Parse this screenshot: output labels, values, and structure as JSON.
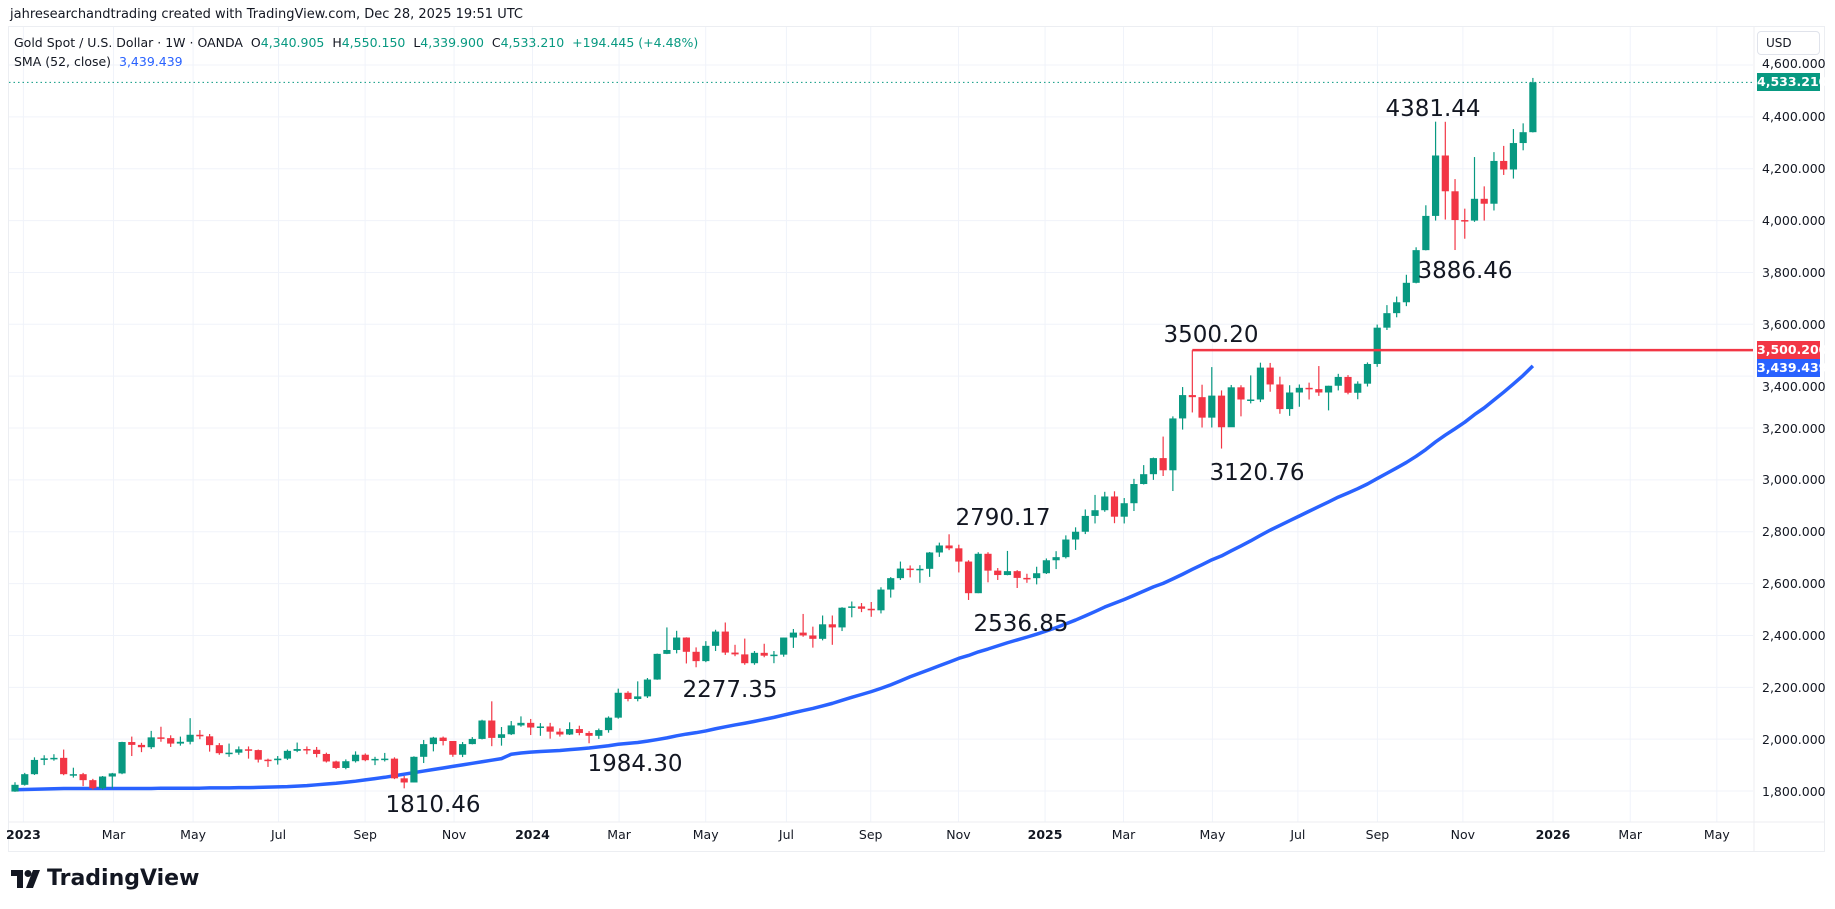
{
  "credit": "jahresearchandtrading created with TradingView.com, Dec 28, 2025 19:51 UTC",
  "legend": {
    "symbol": "Gold Spot / U.S. Dollar · 1W · OANDA",
    "o_label": "O",
    "o": "4,340.905",
    "h_label": "H",
    "h": "4,550.150",
    "l_label": "L",
    "l": "4,339.900",
    "c_label": "C",
    "c": "4,533.210",
    "change": "+194.445 (+4.48%)",
    "sma_label": "SMA (52, close)",
    "sma_value": "3,439.439"
  },
  "currency": "USD",
  "price_tags": {
    "last": "4,533.210",
    "resistance": "3,500.200",
    "sma": "3,439.439"
  },
  "colors": {
    "up": "#089981",
    "down": "#f23645",
    "sma": "#2962ff",
    "resistance": "#f23645"
  },
  "brand": "TradingView",
  "annotations": [
    "4381.44",
    "3886.46",
    "3500.20",
    "3120.76",
    "2790.17",
    "2536.85",
    "2277.35",
    "1984.30",
    "1810.46"
  ],
  "chart_data": {
    "type": "candlestick",
    "interval": "1W",
    "ylim": [
      1750,
      4700
    ],
    "scale": "linear",
    "grid": true,
    "y_ticks": [
      "4,600.000",
      "4,400.000",
      "4,200.000",
      "4,000.000",
      "3,800.000",
      "3,600.000",
      "3,400.000",
      "3,200.000",
      "3,000.000",
      "2,800.000",
      "2,600.000",
      "2,400.000",
      "2,200.000",
      "2,000.000",
      "1,800.000"
    ],
    "x_ticks": [
      "2023",
      "Mar",
      "May",
      "Jul",
      "Sep",
      "Nov",
      "2024",
      "Mar",
      "May",
      "Jul",
      "Sep",
      "Nov",
      "2025",
      "Mar",
      "May",
      "Jul",
      "Sep",
      "Nov",
      "2026",
      "Mar",
      "May"
    ],
    "resistance_level": 3500.2,
    "sma_period": 52,
    "sma_2023_values": [
      1805,
      1806,
      1807,
      1808,
      1809,
      1810,
      1810,
      1810,
      1810,
      1810,
      1810,
      1810,
      1810,
      1810,
      1810,
      1811,
      1811,
      1811,
      1811,
      1811,
      1812,
      1812,
      1812,
      1813,
      1813,
      1814,
      1815,
      1816,
      1817,
      1819,
      1821,
      1824,
      1827,
      1830,
      1834,
      1838,
      1843,
      1848,
      1853,
      1859,
      1865,
      1871,
      1877,
      1883,
      1889,
      1895,
      1901,
      1907,
      1913,
      1919,
      1925
    ],
    "candles_ohlc": [
      [
        1798,
        1834,
        1797,
        1824
      ],
      [
        1824,
        1870,
        1821,
        1865
      ],
      [
        1865,
        1930,
        1862,
        1920
      ],
      [
        1920,
        1938,
        1900,
        1926
      ],
      [
        1926,
        1942,
        1917,
        1928
      ],
      [
        1928,
        1960,
        1861,
        1865
      ],
      [
        1865,
        1890,
        1852,
        1865
      ],
      [
        1865,
        1870,
        1819,
        1842
      ],
      [
        1842,
        1847,
        1805,
        1811
      ],
      [
        1811,
        1858,
        1805,
        1856
      ],
      [
        1856,
        1870,
        1810,
        1868
      ],
      [
        1868,
        1990,
        1865,
        1989
      ],
      [
        1989,
        2010,
        1935,
        1978
      ],
      [
        1978,
        1986,
        1950,
        1969
      ],
      [
        1969,
        2032,
        1962,
        2007
      ],
      [
        2007,
        2048,
        1990,
        2004
      ],
      [
        2004,
        2015,
        1970,
        1983
      ],
      [
        1983,
        2010,
        1975,
        1990
      ],
      [
        1990,
        2081,
        1980,
        2017
      ],
      [
        2017,
        2035,
        2000,
        2011
      ],
      [
        2011,
        2020,
        1952,
        1977
      ],
      [
        1977,
        1985,
        1940,
        1946
      ],
      [
        1946,
        1983,
        1932,
        1948
      ],
      [
        1948,
        1972,
        1940,
        1961
      ],
      [
        1961,
        1972,
        1925,
        1958
      ],
      [
        1958,
        1960,
        1910,
        1921
      ],
      [
        1921,
        1925,
        1893,
        1919
      ],
      [
        1919,
        1935,
        1902,
        1925
      ],
      [
        1925,
        1960,
        1920,
        1955
      ],
      [
        1955,
        1987,
        1950,
        1962
      ],
      [
        1962,
        1972,
        1942,
        1959
      ],
      [
        1959,
        1970,
        1930,
        1943
      ],
      [
        1943,
        1948,
        1910,
        1914
      ],
      [
        1914,
        1917,
        1885,
        1889
      ],
      [
        1889,
        1922,
        1884,
        1915
      ],
      [
        1915,
        1953,
        1910,
        1940
      ],
      [
        1940,
        1945,
        1915,
        1919
      ],
      [
        1919,
        1932,
        1900,
        1924
      ],
      [
        1924,
        1947,
        1914,
        1925
      ],
      [
        1925,
        1930,
        1846,
        1849
      ],
      [
        1849,
        1858,
        1810.46,
        1833
      ],
      [
        1833,
        1934,
        1833,
        1932
      ],
      [
        1932,
        1997,
        1908,
        1981
      ],
      [
        1981,
        2009,
        1953,
        2006
      ],
      [
        2006,
        2010,
        1976,
        1993
      ],
      [
        1993,
        1993,
        1932,
        1940
      ],
      [
        1940,
        1989,
        1931,
        1981
      ],
      [
        1981,
        2008,
        1980,
        2001
      ],
      [
        2001,
        2075,
        1999,
        2072
      ],
      [
        2072,
        2146,
        1973,
        2005
      ],
      [
        2005,
        2047,
        1975,
        2019
      ],
      [
        2019,
        2070,
        2016,
        2053
      ],
      [
        2053,
        2088,
        2048,
        2063
      ],
      [
        2063,
        2078,
        2016,
        2045
      ],
      [
        2045,
        2062,
        2013,
        2049
      ],
      [
        2049,
        2063,
        2002,
        2029
      ],
      [
        2029,
        2042,
        2010,
        2018
      ],
      [
        2018,
        2065,
        2016,
        2039
      ],
      [
        2039,
        2052,
        2015,
        2024
      ],
      [
        2024,
        2031,
        1984.3,
        2013
      ],
      [
        2013,
        2041,
        2001,
        2035
      ],
      [
        2035,
        2088,
        2025,
        2083
      ],
      [
        2083,
        2195,
        2079,
        2179
      ],
      [
        2179,
        2185,
        2146,
        2155
      ],
      [
        2155,
        2223,
        2146,
        2165
      ],
      [
        2165,
        2236,
        2159,
        2230
      ],
      [
        2230,
        2330,
        2229,
        2329
      ],
      [
        2329,
        2431,
        2328,
        2344
      ],
      [
        2344,
        2418,
        2331,
        2392
      ],
      [
        2392,
        2393,
        2292,
        2337
      ],
      [
        2337,
        2354,
        2277.35,
        2301
      ],
      [
        2301,
        2378,
        2297,
        2360
      ],
      [
        2360,
        2422,
        2340,
        2415
      ],
      [
        2415,
        2450,
        2325,
        2334
      ],
      [
        2334,
        2364,
        2320,
        2327
      ],
      [
        2327,
        2388,
        2287,
        2293
      ],
      [
        2293,
        2340,
        2287,
        2333
      ],
      [
        2333,
        2368,
        2316,
        2322
      ],
      [
        2322,
        2340,
        2293,
        2326
      ],
      [
        2326,
        2392,
        2318,
        2392
      ],
      [
        2392,
        2425,
        2352,
        2411
      ],
      [
        2411,
        2483,
        2395,
        2400
      ],
      [
        2400,
        2434,
        2353,
        2387
      ],
      [
        2387,
        2477,
        2381,
        2443
      ],
      [
        2443,
        2477,
        2364,
        2431
      ],
      [
        2431,
        2509,
        2417,
        2507
      ],
      [
        2507,
        2531,
        2470,
        2512
      ],
      [
        2512,
        2525,
        2490,
        2503
      ],
      [
        2503,
        2529,
        2472,
        2497
      ],
      [
        2497,
        2586,
        2485,
        2577
      ],
      [
        2577,
        2625,
        2546,
        2621
      ],
      [
        2621,
        2685,
        2614,
        2658
      ],
      [
        2658,
        2670,
        2624,
        2653
      ],
      [
        2653,
        2671,
        2603,
        2657
      ],
      [
        2657,
        2722,
        2626,
        2720
      ],
      [
        2720,
        2758,
        2703,
        2747
      ],
      [
        2747,
        2790.17,
        2729,
        2736
      ],
      [
        2736,
        2750,
        2643,
        2685
      ],
      [
        2685,
        2690,
        2536.85,
        2563
      ],
      [
        2563,
        2721,
        2563,
        2715
      ],
      [
        2715,
        2721,
        2605,
        2650
      ],
      [
        2650,
        2660,
        2614,
        2633
      ],
      [
        2633,
        2726,
        2632,
        2648
      ],
      [
        2648,
        2652,
        2583,
        2622
      ],
      [
        2622,
        2638,
        2603,
        2621
      ],
      [
        2621,
        2665,
        2597,
        2640
      ],
      [
        2640,
        2697,
        2637,
        2690
      ],
      [
        2690,
        2725,
        2656,
        2702
      ],
      [
        2702,
        2786,
        2697,
        2770
      ],
      [
        2770,
        2817,
        2730,
        2800
      ],
      [
        2800,
        2886,
        2791,
        2861
      ],
      [
        2861,
        2942,
        2832,
        2883
      ],
      [
        2883,
        2954,
        2877,
        2936
      ],
      [
        2936,
        2956,
        2833,
        2858
      ],
      [
        2858,
        2930,
        2832,
        2910
      ],
      [
        2910,
        3004,
        2880,
        2984
      ],
      [
        2984,
        3057,
        2982,
        3022
      ],
      [
        3022,
        3086,
        3000,
        3084
      ],
      [
        3084,
        3167,
        3015,
        3037
      ],
      [
        3037,
        3245,
        2957,
        3237
      ],
      [
        3237,
        3358,
        3194,
        3327
      ],
      [
        3327,
        3500.2,
        3260,
        3319
      ],
      [
        3319,
        3367,
        3202,
        3240
      ],
      [
        3240,
        3435,
        3202,
        3325
      ],
      [
        3325,
        3345,
        3120.76,
        3203
      ],
      [
        3203,
        3366,
        3204,
        3357
      ],
      [
        3357,
        3365,
        3245,
        3310
      ],
      [
        3310,
        3403,
        3295,
        3310
      ],
      [
        3310,
        3452,
        3300,
        3433
      ],
      [
        3433,
        3451,
        3340,
        3368
      ],
      [
        3368,
        3398,
        3255,
        3273
      ],
      [
        3273,
        3365,
        3247,
        3337
      ],
      [
        3337,
        3368,
        3282,
        3355
      ],
      [
        3355,
        3375,
        3310,
        3350
      ],
      [
        3350,
        3439,
        3324,
        3337
      ],
      [
        3337,
        3363,
        3268,
        3363
      ],
      [
        3363,
        3409,
        3345,
        3397
      ],
      [
        3397,
        3404,
        3330,
        3336
      ],
      [
        3336,
        3380,
        3311,
        3371
      ],
      [
        3371,
        3453,
        3360,
        3447
      ],
      [
        3447,
        3599,
        3436,
        3587
      ],
      [
        3587,
        3674,
        3578,
        3643
      ],
      [
        3643,
        3707,
        3627,
        3685
      ],
      [
        3685,
        3791,
        3670,
        3760
      ],
      [
        3760,
        3897,
        3758,
        3886
      ],
      [
        3886,
        4059,
        3885,
        4018
      ],
      [
        4018,
        4381.44,
        4000,
        4251
      ],
      [
        4251,
        4381,
        4004,
        4113
      ],
      [
        4113,
        4160,
        3886.46,
        4002
      ],
      [
        4002,
        4046,
        3930,
        4000
      ],
      [
        4000,
        4245,
        3995,
        4084
      ],
      [
        4084,
        4132,
        4000,
        4065
      ],
      [
        4065,
        4264,
        4039,
        4230
      ],
      [
        4230,
        4288,
        4176,
        4197
      ],
      [
        4197,
        4353,
        4162,
        4299
      ],
      [
        4299,
        4375,
        4271,
        4340.905
      ],
      [
        4340.905,
        4550.15,
        4339.9,
        4533.21
      ]
    ]
  }
}
